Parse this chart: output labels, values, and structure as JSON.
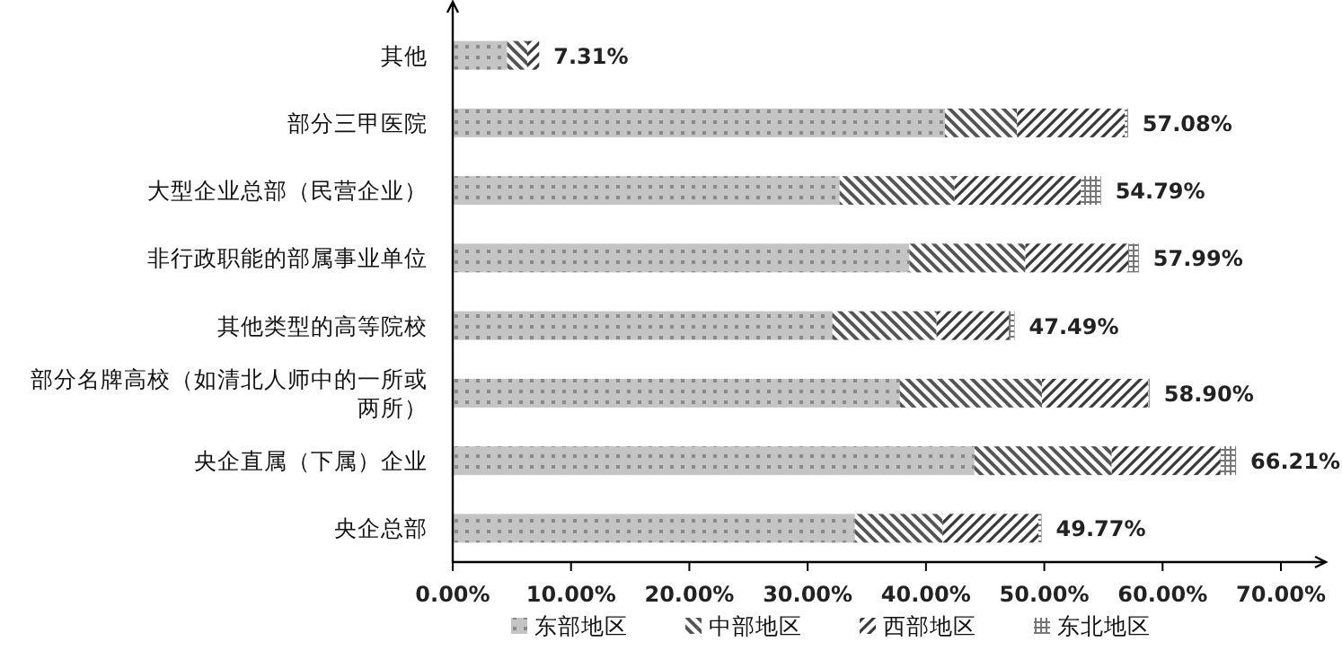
{
  "chart_data": {
    "type": "bar",
    "orientation": "horizontal",
    "stacked": true,
    "categories": [
      "其他",
      "部分三甲医院",
      "大型企业总部（民营企业）",
      "非行政职能的部属事业单位",
      "其他类型的高等院校",
      "部分名牌高校（如清北人师中的一所或两所）",
      "央企直属（下属）企业",
      "央企总部"
    ],
    "series": [
      {
        "name": "东部地区",
        "color": "#c4c4c4",
        "values": [
          4.6,
          41.6,
          32.7,
          38.6,
          32.1,
          37.8,
          44.1,
          34.0
        ]
      },
      {
        "name": "中部地区",
        "color": "#555555",
        "values": [
          1.7,
          6.1,
          9.7,
          9.8,
          8.8,
          12.0,
          11.6,
          7.4
        ]
      },
      {
        "name": "西部地区",
        "color": "#3a3a3a",
        "values": [
          1.01,
          9.1,
          10.7,
          8.7,
          6.1,
          9.0,
          9.2,
          8.1
        ]
      },
      {
        "name": "东北地区",
        "color": "#777777",
        "values": [
          0,
          0.28,
          1.69,
          0.89,
          0.49,
          0.1,
          1.31,
          0.27
        ]
      }
    ],
    "totals": [
      "7.31%",
      "57.08%",
      "54.79%",
      "57.99%",
      "47.49%",
      "58.90%",
      "66.21%",
      "49.77%"
    ],
    "xlim": [
      0,
      70
    ],
    "xticks": [
      {
        "value": 0,
        "label": "0.00%"
      },
      {
        "value": 10,
        "label": "10.00%"
      },
      {
        "value": 20,
        "label": "20.00%"
      },
      {
        "value": 30,
        "label": "30.00%"
      },
      {
        "value": 40,
        "label": "40.00%"
      },
      {
        "value": 50,
        "label": "50.00%"
      },
      {
        "value": 60,
        "label": "60.00%"
      },
      {
        "value": 70,
        "label": "70.00%"
      }
    ],
    "legend": "bottom"
  }
}
